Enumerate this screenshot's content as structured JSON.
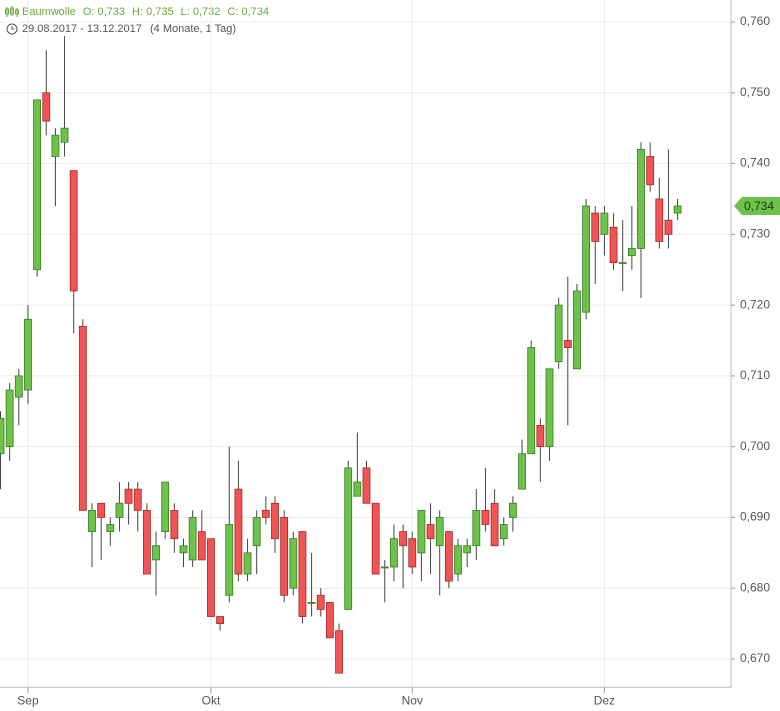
{
  "chart_data": {
    "type": "candlestick",
    "title": "Baumwolle",
    "legend": {
      "open": "O: 0,733",
      "high": "H: 0,735",
      "low": "L: 0,732",
      "close": "C: 0,734"
    },
    "date_range": "29.08.2017 - 13.12.2017",
    "period": "(4 Monate, 1 Tag)",
    "up_color": "#6cc24a",
    "down_color": "#f05454",
    "current_price": {
      "value": 0.734,
      "label": "0,734"
    },
    "categories": [
      null,
      null,
      null,
      "Sep",
      null,
      null,
      null,
      null,
      null,
      null,
      null,
      null,
      null,
      null,
      null,
      null,
      null,
      null,
      null,
      null,
      null,
      null,
      null,
      "Okt",
      null,
      null,
      null,
      null,
      null,
      null,
      null,
      null,
      null,
      null,
      null,
      null,
      null,
      null,
      null,
      null,
      null,
      null,
      null,
      null,
      null,
      "Nov",
      null,
      null,
      null,
      null,
      null,
      null,
      null,
      null,
      null,
      null,
      null,
      null,
      null,
      null,
      null,
      null,
      null,
      null,
      null,
      null,
      "Dez",
      null,
      null,
      null,
      null,
      null,
      null,
      null,
      null
    ],
    "open": [
      0.699,
      0.7,
      0.707,
      0.708,
      0.725,
      0.75,
      0.741,
      0.743,
      0.739,
      0.717,
      0.688,
      0.692,
      0.688,
      0.69,
      0.694,
      0.694,
      0.691,
      0.684,
      0.688,
      0.691,
      0.685,
      0.684,
      0.688,
      0.687,
      0.676,
      0.679,
      0.694,
      0.682,
      0.686,
      0.691,
      0.692,
      0.69,
      0.68,
      0.688,
      0.678,
      0.679,
      0.678,
      0.674,
      0.677,
      0.693,
      0.697,
      0.692,
      0.683,
      0.683,
      0.688,
      0.687,
      0.685,
      0.689,
      0.686,
      0.688,
      0.682,
      0.685,
      0.686,
      0.691,
      0.692,
      0.687,
      0.69,
      0.694,
      0.699,
      0.703,
      0.7,
      0.712,
      0.715,
      0.711,
      0.719,
      0.733,
      0.73,
      0.731,
      0.726,
      0.727,
      0.728,
      0.741,
      0.735,
      0.732,
      0.733
    ],
    "high": [
      0.705,
      0.709,
      0.711,
      0.72,
      0.749,
      0.756,
      0.745,
      0.758,
      0.739,
      0.718,
      0.692,
      0.692,
      0.69,
      0.695,
      0.695,
      0.695,
      0.692,
      0.688,
      0.695,
      0.692,
      0.687,
      0.691,
      0.691,
      0.687,
      0.676,
      0.7,
      0.698,
      0.687,
      0.691,
      0.693,
      0.693,
      0.691,
      0.688,
      0.688,
      0.685,
      0.68,
      0.678,
      0.675,
      0.698,
      0.702,
      0.698,
      0.692,
      0.684,
      0.689,
      0.689,
      0.688,
      0.691,
      0.692,
      0.691,
      0.688,
      0.687,
      0.687,
      0.694,
      0.697,
      0.694,
      0.69,
      0.693,
      0.701,
      0.715,
      0.704,
      0.711,
      0.721,
      0.724,
      0.723,
      0.735,
      0.734,
      0.734,
      0.733,
      0.732,
      0.734,
      0.743,
      0.743,
      0.738,
      0.742,
      0.735
    ],
    "low": [
      0.694,
      0.698,
      0.703,
      0.706,
      0.724,
      0.744,
      0.734,
      0.741,
      0.716,
      0.691,
      0.683,
      0.684,
      0.686,
      0.688,
      0.689,
      0.688,
      0.682,
      0.679,
      0.687,
      0.685,
      0.683,
      0.683,
      0.684,
      0.676,
      0.674,
      0.678,
      0.681,
      0.681,
      0.682,
      0.689,
      0.685,
      0.678,
      0.679,
      0.675,
      0.676,
      0.676,
      0.673,
      0.668,
      0.677,
      0.693,
      0.692,
      0.682,
      0.678,
      0.681,
      0.68,
      0.682,
      0.681,
      0.682,
      0.679,
      0.68,
      0.681,
      0.683,
      0.684,
      0.688,
      0.686,
      0.686,
      0.688,
      0.694,
      0.699,
      0.695,
      0.698,
      0.711,
      0.703,
      0.711,
      0.718,
      0.723,
      0.727,
      0.725,
      0.722,
      0.725,
      0.721,
      0.736,
      0.728,
      0.728,
      0.732
    ],
    "close": [
      0.704,
      0.708,
      0.71,
      0.718,
      0.749,
      0.746,
      0.744,
      0.745,
      0.722,
      0.691,
      0.691,
      0.69,
      0.689,
      0.692,
      0.692,
      0.691,
      0.682,
      0.686,
      0.695,
      0.687,
      0.686,
      0.69,
      0.684,
      0.676,
      0.675,
      0.689,
      0.682,
      0.685,
      0.69,
      0.69,
      0.687,
      0.679,
      0.687,
      0.676,
      0.678,
      0.677,
      0.673,
      0.668,
      0.697,
      0.695,
      0.692,
      0.682,
      0.683,
      0.687,
      0.686,
      0.683,
      0.691,
      0.687,
      0.69,
      0.681,
      0.686,
      0.686,
      0.691,
      0.689,
      0.686,
      0.689,
      0.692,
      0.699,
      0.714,
      0.7,
      0.711,
      0.72,
      0.714,
      0.722,
      0.734,
      0.729,
      0.733,
      0.726,
      0.726,
      0.728,
      0.742,
      0.737,
      0.729,
      0.73,
      0.734
    ],
    "ylim": [
      0.666,
      0.763
    ],
    "yticks": [
      {
        "value": 0.67,
        "label": "0,670"
      },
      {
        "value": 0.68,
        "label": "0,680"
      },
      {
        "value": 0.69,
        "label": "0,690"
      },
      {
        "value": 0.7,
        "label": "0,700"
      },
      {
        "value": 0.71,
        "label": "0,710"
      },
      {
        "value": 0.72,
        "label": "0,720"
      },
      {
        "value": 0.73,
        "label": "0,730"
      },
      {
        "value": 0.74,
        "label": "0,740"
      },
      {
        "value": 0.75,
        "label": "0,750"
      },
      {
        "value": 0.76,
        "label": "0,760"
      }
    ],
    "grid": true
  }
}
